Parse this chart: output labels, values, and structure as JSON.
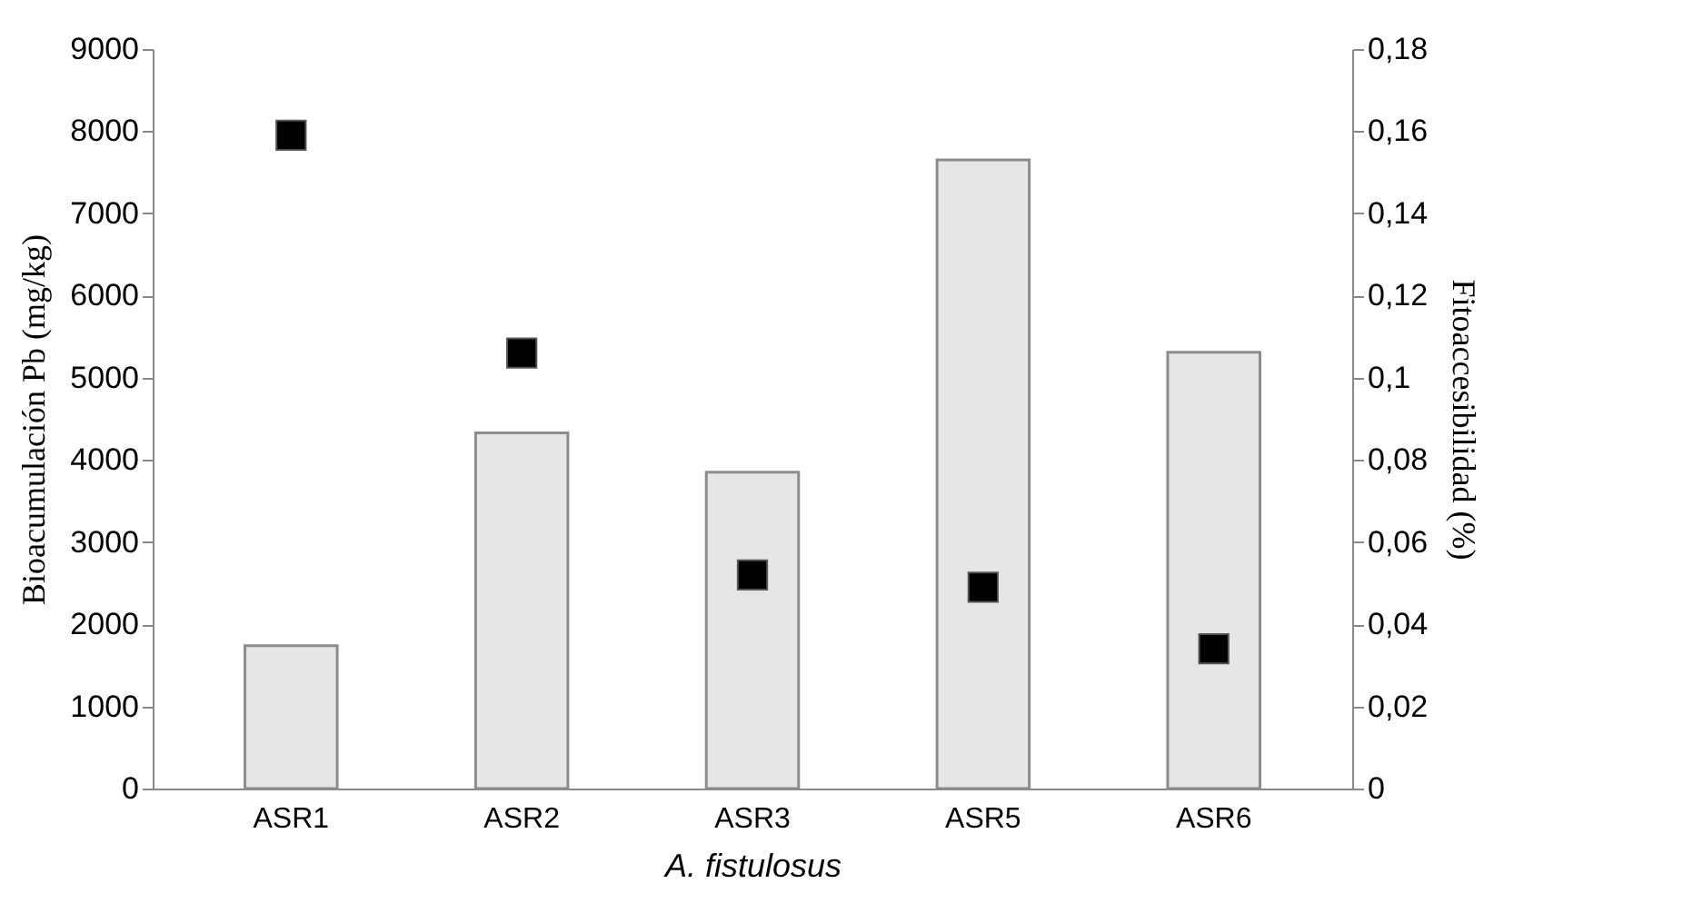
{
  "chart_data": {
    "type": "bar",
    "xlabel": "A. fistulosus",
    "ylabel": "Bioacumulación Pb (mg/kg)",
    "y2label": "Fitoaccesibilidad (%)",
    "categories": [
      "ASR1",
      "ASR2",
      "ASR3",
      "ASR5",
      "ASR6"
    ],
    "series": [
      {
        "color": "#e6e6e6",
        "values": [
          1740,
          4330,
          3850,
          7650,
          5310
        ]
      },
      {
        "type": "scatter",
        "axis": "y2",
        "color": "#000000",
        "marker": "square",
        "values": [
          0.159,
          0.106,
          0.052,
          0.049,
          0.034
        ]
      }
    ],
    "ylim": [
      0,
      9000
    ],
    "yticks": [
      0,
      1000,
      2000,
      3000,
      4000,
      5000,
      6000,
      7000,
      8000,
      9000
    ],
    "y2lim": [
      0,
      0.18
    ],
    "y2ticks": [
      0,
      {
        "value": 0.02,
        "label": "0,02"
      },
      {
        "value": 0.04,
        "label": "0,04"
      },
      {
        "value": 0.06,
        "label": "0,06"
      },
      {
        "value": 0.08,
        "label": "0,08"
      },
      {
        "value": 0.1,
        "label": "0,1"
      },
      {
        "value": 0.12,
        "label": "0,12"
      },
      {
        "value": 0.14,
        "label": "0,14"
      },
      {
        "value": 0.16,
        "label": "0,16"
      },
      {
        "value": 0.18,
        "label": "0,18"
      }
    ],
    "grid": false
  }
}
